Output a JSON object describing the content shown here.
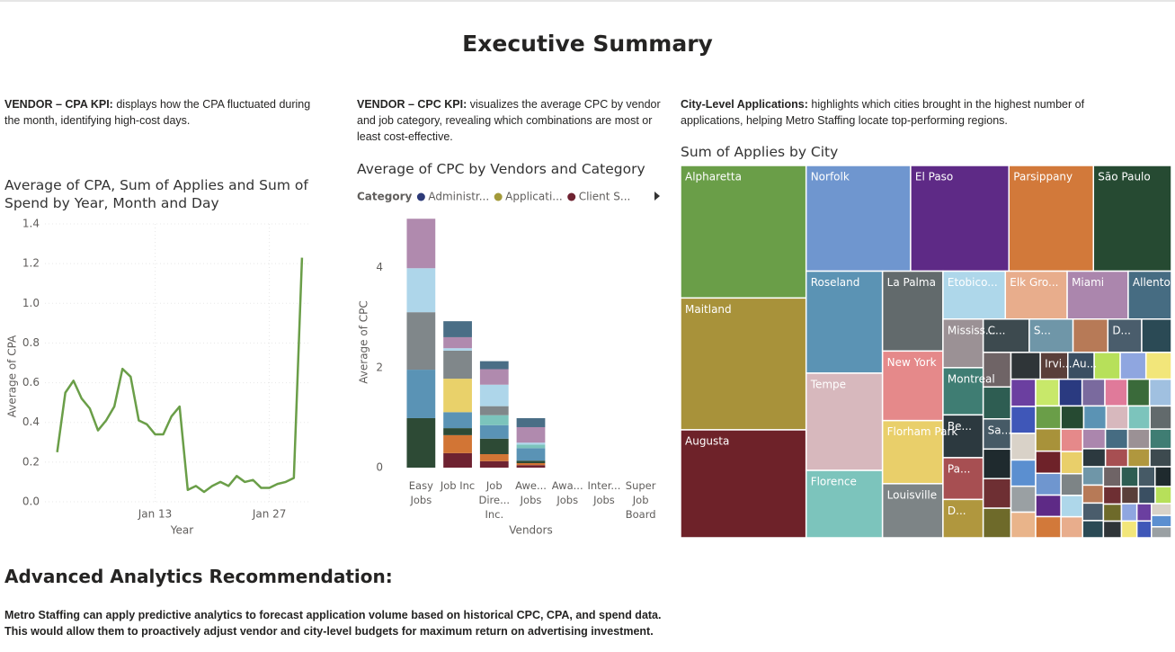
{
  "header": {
    "title": "Executive Summary"
  },
  "sections": [
    {
      "lead": "VENDOR – CPA KPI:",
      "text": "displays how the CPA fluctuated during the month, identifying high-cost days."
    },
    {
      "lead": "VENDOR – CPC KPI:",
      "text": "visualizes the average CPC by vendor and job category, revealing which combinations are most or least cost-effective."
    },
    {
      "lead": "City-Level Applications:",
      "text": "highlights which cities brought in the highest number of applications, helping Metro Staffing locate top-performing regions."
    }
  ],
  "recommendation": {
    "title": "Advanced Analytics Recommendation:",
    "lines": [
      "Metro Staffing can apply predictive analytics to forecast application volume based on historical CPC, CPA, and spend data.",
      "This would allow them to proactively adjust vendor and city-level budgets for maximum return on advertising investment."
    ]
  },
  "chart_data": [
    {
      "type": "line",
      "title": "Average of CPA, Sum of Applies and Sum of Spend by Year, Month and Day",
      "x_label": "Year",
      "y_label": "Average of CPA",
      "x": [
        1,
        2,
        3,
        4,
        5,
        6,
        7,
        8,
        9,
        10,
        11,
        12,
        13,
        14,
        15,
        16,
        17,
        18,
        19,
        20,
        21,
        22,
        23,
        24,
        25,
        26,
        27,
        28,
        29,
        30,
        31
      ],
      "values": [
        0.25,
        0.55,
        0.61,
        0.52,
        0.47,
        0.36,
        0.41,
        0.48,
        0.67,
        0.63,
        0.41,
        0.39,
        0.34,
        0.34,
        0.43,
        0.48,
        0.06,
        0.08,
        0.05,
        0.08,
        0.1,
        0.08,
        0.13,
        0.1,
        0.11,
        0.07,
        0.07,
        0.09,
        0.1,
        0.12,
        1.23
      ],
      "color": "#6a9e48",
      "xlim": [
        -0.5,
        32
      ],
      "xticks": [
        {
          "value": 13,
          "label": "Jan 13"
        },
        {
          "value": 27,
          "label": "Jan 27"
        }
      ],
      "ylim": [
        0,
        1.4
      ],
      "yticks": [
        {
          "value": 0,
          "label": "0.0"
        },
        0.2,
        0.4,
        0.6,
        0.8,
        {
          "value": 1,
          "label": "1.0"
        },
        1.2,
        1.4
      ],
      "grid": true
    },
    {
      "type": "stacked_bar",
      "title": "Average of CPC by Vendors and Category",
      "x_label": "Vendors",
      "y_label": "Average of CPC",
      "legend_title": "Category",
      "categories": [
        "Easy Jobs",
        "Job Inc",
        "Job Dire... Inc.",
        "Awe... Jobs",
        "Awa... Jobs",
        "Inter... Jobs",
        "Super Job Board"
      ],
      "series": [
        {
          "name": "Administr...",
          "color": "#2d3a78",
          "values": [
            null,
            null,
            null,
            null,
            null,
            null,
            null
          ]
        },
        {
          "name": "Applicati...",
          "color": "#a39a3a",
          "values": [
            null,
            null,
            null,
            null,
            null,
            null,
            null
          ]
        },
        {
          "name": "Client S...",
          "color": "#6e2231",
          "values": [
            null,
            0.29,
            0.13,
            0.05,
            null,
            null,
            null
          ]
        },
        {
          "name": null,
          "color": "#d27535",
          "values": [
            null,
            0.36,
            0.14,
            0.04,
            null,
            null,
            null
          ]
        },
        {
          "name": null,
          "color": "#2d4a35",
          "values": [
            0.99,
            0.14,
            0.31,
            0.05,
            null,
            null,
            null
          ]
        },
        {
          "name": null,
          "color": "#5a93b5",
          "values": [
            0.97,
            0.32,
            0.27,
            0.25,
            null,
            null,
            null
          ]
        },
        {
          "name": null,
          "color": "#e9d16a",
          "values": [
            null,
            0.67,
            null,
            null,
            null,
            null,
            null
          ]
        },
        {
          "name": null,
          "color": "#7cc4bc",
          "values": [
            null,
            null,
            0.2,
            0.07,
            null,
            null,
            null
          ]
        },
        {
          "name": null,
          "color": "#80878a",
          "values": [
            1.15,
            0.56,
            0.18,
            null,
            null,
            null,
            null
          ]
        },
        {
          "name": null,
          "color": "#aed6ea",
          "values": [
            0.88,
            0.05,
            0.43,
            0.04,
            null,
            null,
            null
          ]
        },
        {
          "name": null,
          "color": "#b08aae",
          "values": [
            0.99,
            0.22,
            0.31,
            0.31,
            null,
            null,
            null
          ]
        },
        {
          "name": null,
          "color": "#4a6e86",
          "values": [
            null,
            0.32,
            0.16,
            0.18,
            null,
            null,
            null
          ]
        }
      ],
      "ylim": [
        0,
        5.2
      ],
      "yticks": [
        0,
        2,
        4
      ]
    },
    {
      "type": "treemap",
      "title": "Sum of Applies by City",
      "categories": [
        "Alpharetta",
        "Maitland",
        "Augusta",
        "Norfolk",
        "El Paso",
        "Parsippany",
        "São Paulo",
        "Roseland",
        "Tempe",
        "Florence",
        "La Palma",
        "New York",
        "Florham Park",
        "Louisville",
        "Etobico...",
        "Elk Gro...",
        "Miami",
        "Allento...",
        "Mississ...",
        "Montreal",
        "Be...",
        "Pa...",
        "D...",
        "C...",
        "S...",
        null,
        "D...",
        null,
        null,
        null,
        "Sa...",
        null,
        null,
        null,
        null,
        "Irvi...",
        "Au...",
        null,
        null,
        null,
        null,
        null,
        null,
        null,
        null,
        null,
        null,
        null,
        null,
        null,
        null,
        null,
        null,
        null,
        null,
        null,
        null,
        null,
        null,
        null,
        null,
        null,
        null,
        null,
        null,
        null,
        null,
        null,
        null,
        null,
        null,
        null,
        null,
        null,
        null,
        null,
        null,
        null,
        null,
        null,
        null,
        null,
        null,
        null,
        null,
        null,
        null,
        null,
        null,
        null,
        null,
        null,
        null,
        null,
        null,
        null,
        null
      ],
      "values": [
        2050,
        2040,
        1670,
        1360,
        1280,
        1100,
        1015,
        960,
        915,
        634,
        595,
        518,
        470,
        403,
        368,
        365,
        360,
        255,
        241,
        234,
        212,
        207,
        190,
        189,
        180,
        143,
        139,
        122,
        118,
        109,
        103,
        101,
        101,
        101,
        97,
        91,
        87,
        86,
        85,
        84,
        83,
        82,
        81,
        80,
        79,
        78,
        77,
        76,
        75,
        74,
        73,
        72,
        71,
        70,
        69,
        68,
        67,
        66,
        65,
        64,
        63,
        62,
        61,
        60,
        59,
        58,
        57,
        56,
        55,
        54,
        53,
        52,
        51,
        50,
        49,
        48,
        47,
        46,
        45,
        44,
        43,
        42,
        41,
        40,
        39,
        38,
        37,
        36,
        35,
        34,
        33,
        32,
        31,
        30,
        29,
        28,
        27
      ],
      "palette": [
        "#6a9e48",
        "#a8923a",
        "#6e2229",
        "#6f96cf",
        "#5e2a86",
        "#d2793a",
        "#264a32",
        "#5b93b4",
        "#d7b8bd",
        "#7cc4bc",
        "#626a6c",
        "#e5898a",
        "#e9cf6a",
        "#7d8486",
        "#aed7ea",
        "#e8ad8c",
        "#ab86ad",
        "#466c82",
        "#9b9195",
        "#3f7d73",
        "#2c393f",
        "#a74f52",
        "#b0973e",
        "#3d4a4f",
        "#6f96a8",
        "#b77a57",
        "#4a5d6c",
        "#2b4a55",
        "#6f6466",
        "#2e5d52",
        "#465a66",
        "#1f2a2e",
        "#6e2f33",
        "#6e6a2a",
        "#2f3538",
        "#5a3f3a",
        "#3a4f62",
        "#b7e05a",
        "#8fa6e0",
        "#f2e67a",
        "#6b3fa0",
        "#3f57b8",
        "#d9d2c8",
        "#5b8fd0",
        "#9aa0a3",
        "#e9b48a",
        "#c8e86a",
        "#2a3a80",
        "#7a6a9e",
        "#e07a9a",
        "#3a6a3a",
        "#a0c0e0"
      ]
    }
  ]
}
